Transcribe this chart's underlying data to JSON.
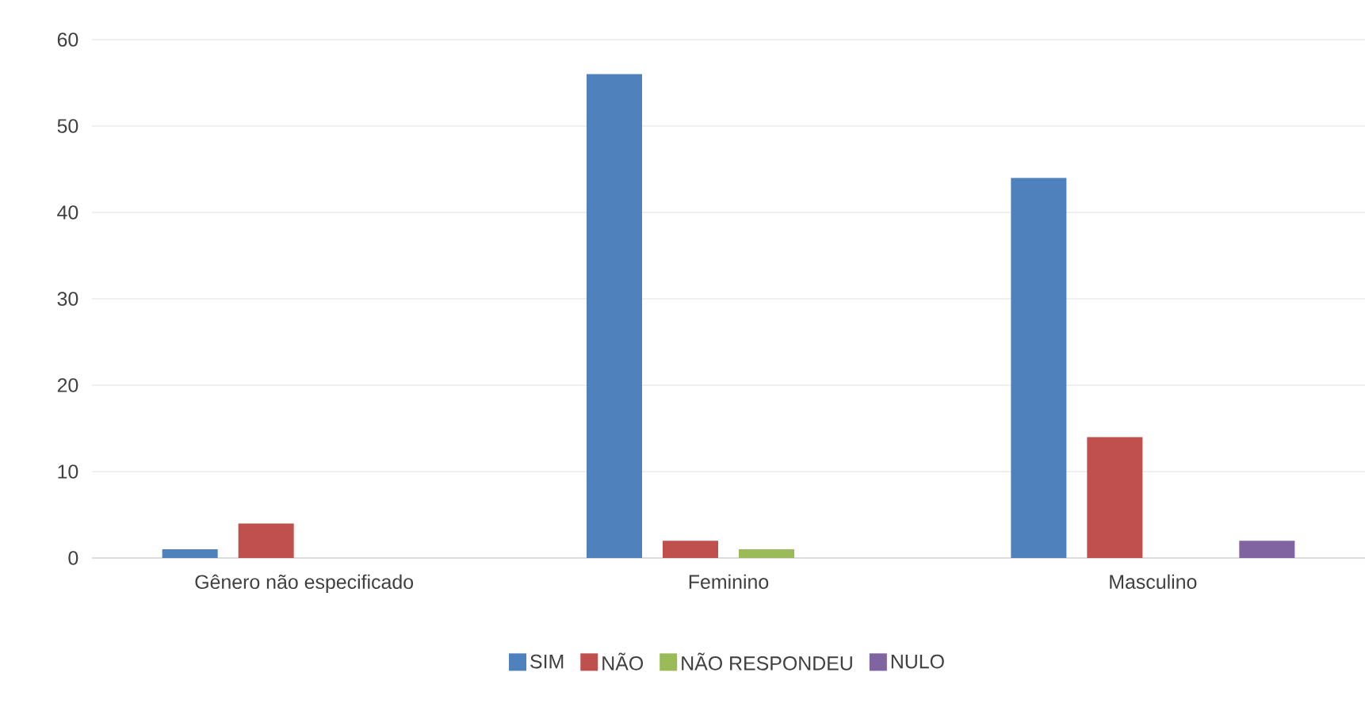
{
  "chart_data": {
    "type": "bar",
    "categories": [
      "Gênero não especificado",
      "Feminino",
      "Masculino"
    ],
    "series": [
      {
        "name": "SIM",
        "color": "#4f81bd",
        "values": [
          1,
          56,
          44
        ]
      },
      {
        "name": "NÃO",
        "color": "#c0504d",
        "values": [
          4,
          2,
          14
        ]
      },
      {
        "name": "NÃO RESPONDEU",
        "color": "#9bbb59",
        "values": [
          0,
          1,
          0
        ]
      },
      {
        "name": "NULO",
        "color": "#8064a2",
        "values": [
          0,
          0,
          2
        ]
      }
    ],
    "ylim": [
      0,
      60
    ],
    "yticks": [
      0,
      10,
      20,
      30,
      40,
      50,
      60
    ],
    "grid": "y",
    "legend": "bottom"
  }
}
